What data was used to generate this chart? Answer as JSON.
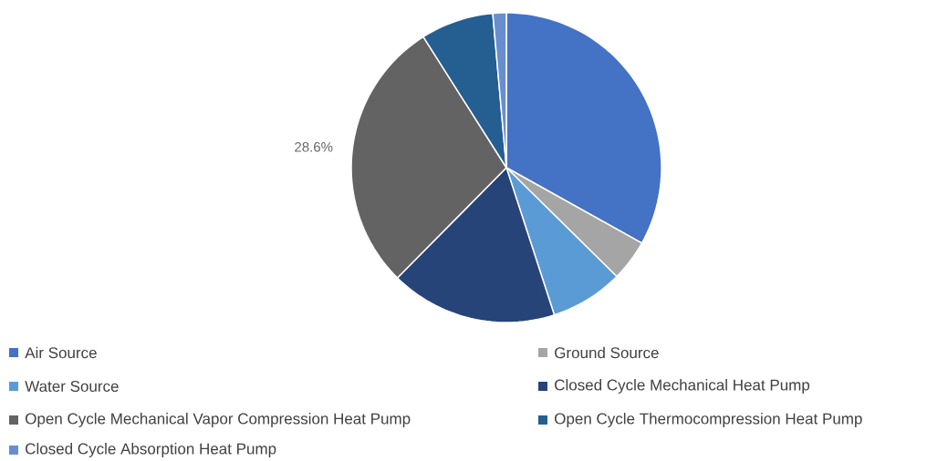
{
  "chart_data": {
    "type": "pie",
    "categories": [
      "Air Source",
      "Ground Source",
      "Water Source",
      "Closed Cycle Mechanical Heat Pump",
      "Open Cycle Mechanical Vapor Compression Heat Pump",
      "Open Cycle Thermocompression Heat Pump",
      "Closed Cycle Absorption Heat Pump"
    ],
    "values": [
      33.1,
      4.3,
      7.6,
      17.4,
      28.6,
      7.6,
      1.4
    ],
    "colors": [
      "#4472c4",
      "#a5a5a5",
      "#5b9bd5",
      "#264478",
      "#636363",
      "#255e91",
      "#698ed0"
    ],
    "value_labels": [
      null,
      null,
      null,
      null,
      "28.6%",
      null,
      null
    ],
    "legend": "bottom"
  }
}
